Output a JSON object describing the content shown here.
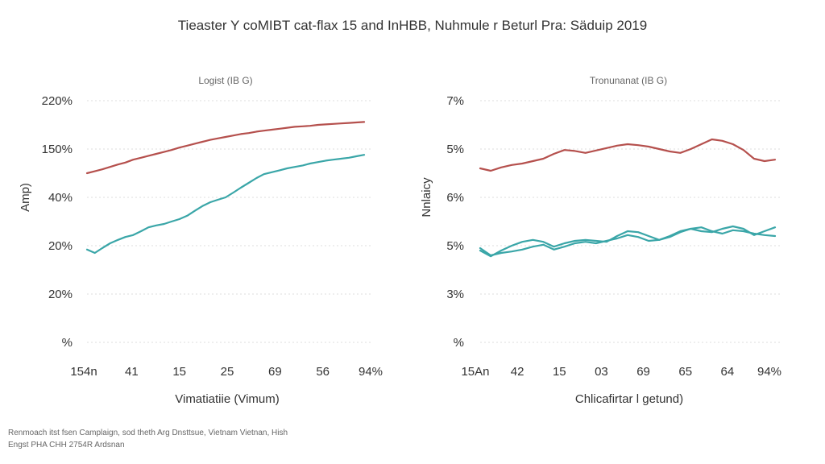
{
  "title": "Tieaster Y coMIBT cat-flax 15 and InHBB, Nuhmule r Beturl Pra: Säduip 2019",
  "source_lines": [
    "Renmoach itst fsen Camplaign, sod theth Arg Dnsttsue, Vietnam Vietnan, Hish",
    "Engst PHA CHH 2754R Ardsnan"
  ],
  "colors": {
    "red": "#b5504d",
    "teal": "#3aa6a8",
    "grid": "#dcdcdc"
  },
  "chart_data": [
    {
      "type": "line",
      "title": "Logist (IB G)",
      "xlabel": "Vimatiatiie (Vimum)",
      "ylabel": "Amp)",
      "categories": [
        "154n",
        "41",
        "15",
        "25",
        "69",
        "56",
        "94%"
      ],
      "yticks": [
        "220%",
        "150%",
        "40%",
        "20%",
        "20%",
        "%"
      ],
      "ylim": [
        0,
        5
      ],
      "grid": true,
      "x": [
        0,
        0.17,
        0.33,
        0.5,
        0.67,
        0.83,
        1,
        1.17,
        1.33,
        1.5,
        1.67,
        1.83,
        2,
        2.17,
        2.33,
        2.5,
        2.67,
        2.83,
        3,
        3.17,
        3.33,
        3.5,
        3.67,
        3.83,
        4,
        4.17,
        4.33,
        4.5,
        4.67,
        4.83,
        5,
        5.17,
        5.33,
        5.5,
        5.67,
        5.83,
        6
      ],
      "series": [
        {
          "color": "#b5504d",
          "values": [
            3.5,
            3.54,
            3.58,
            3.63,
            3.68,
            3.72,
            3.78,
            3.82,
            3.86,
            3.9,
            3.94,
            3.98,
            4.03,
            4.07,
            4.11,
            4.15,
            4.19,
            4.22,
            4.25,
            4.28,
            4.31,
            4.33,
            4.36,
            4.38,
            4.4,
            4.42,
            4.44,
            4.46,
            4.47,
            4.48,
            4.5,
            4.51,
            4.52,
            4.53,
            4.54,
            4.55,
            4.56
          ]
        },
        {
          "color": "#3aa6a8",
          "values": [
            1.92,
            1.85,
            1.95,
            2.05,
            2.12,
            2.18,
            2.22,
            2.3,
            2.38,
            2.42,
            2.45,
            2.5,
            2.55,
            2.62,
            2.72,
            2.82,
            2.9,
            2.95,
            3.0,
            3.1,
            3.2,
            3.3,
            3.4,
            3.48,
            3.52,
            3.56,
            3.6,
            3.63,
            3.66,
            3.7,
            3.73,
            3.76,
            3.78,
            3.8,
            3.82,
            3.85,
            3.88
          ]
        }
      ]
    },
    {
      "type": "line",
      "title": "Tronunanat (IB G)",
      "xlabel": "Chlicafirtar l getund)",
      "ylabel": "Nnlaicy",
      "categories": [
        "15An",
        "42",
        "15",
        "03",
        "69",
        "65",
        "64",
        "94%"
      ],
      "yticks": [
        "7%",
        "5%",
        "6%",
        "5%",
        "3%",
        "%"
      ],
      "ylim": [
        0,
        5
      ],
      "grid": true,
      "x": [
        0,
        0.25,
        0.5,
        0.75,
        1,
        1.25,
        1.5,
        1.75,
        2,
        2.25,
        2.5,
        2.75,
        3,
        3.25,
        3.5,
        3.75,
        4,
        4.25,
        4.5,
        4.75,
        5,
        5.25,
        5.5,
        5.75,
        6,
        6.25,
        6.5,
        6.75,
        7
      ],
      "series": [
        {
          "color": "#b5504d",
          "values": [
            3.6,
            3.55,
            3.62,
            3.67,
            3.7,
            3.75,
            3.8,
            3.9,
            3.98,
            3.96,
            3.92,
            3.97,
            4.02,
            4.07,
            4.1,
            4.08,
            4.05,
            4.0,
            3.95,
            3.92,
            4.0,
            4.1,
            4.2,
            4.17,
            4.1,
            3.98,
            3.8,
            3.75,
            3.78
          ]
        },
        {
          "color": "#3aa6a8",
          "values": [
            1.9,
            1.78,
            1.9,
            2.0,
            2.08,
            2.12,
            2.08,
            1.98,
            2.05,
            2.1,
            2.12,
            2.1,
            2.08,
            2.2,
            2.3,
            2.28,
            2.2,
            2.12,
            2.18,
            2.28,
            2.35,
            2.38,
            2.3,
            2.25,
            2.32,
            2.3,
            2.25,
            2.22,
            2.2
          ]
        },
        {
          "color": "#3aa6a8",
          "values": [
            1.95,
            1.8,
            1.85,
            1.88,
            1.92,
            1.98,
            2.02,
            1.92,
            1.98,
            2.05,
            2.08,
            2.05,
            2.1,
            2.15,
            2.22,
            2.18,
            2.1,
            2.12,
            2.2,
            2.3,
            2.35,
            2.3,
            2.28,
            2.35,
            2.4,
            2.35,
            2.22,
            2.3,
            2.38
          ]
        }
      ]
    }
  ]
}
